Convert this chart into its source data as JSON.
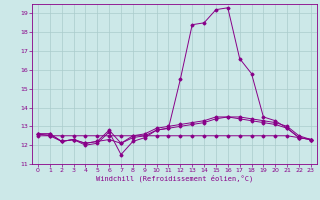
{
  "xlabel": "Windchill (Refroidissement éolien,°C)",
  "background_color": "#cce8e8",
  "line_color": "#880088",
  "grid_color": "#aacccc",
  "xlim": [
    -0.5,
    23.5
  ],
  "ylim": [
    11,
    19.5
  ],
  "yticks": [
    11,
    12,
    13,
    14,
    15,
    16,
    17,
    18,
    19
  ],
  "xticks": [
    0,
    1,
    2,
    3,
    4,
    5,
    6,
    7,
    8,
    9,
    10,
    11,
    12,
    13,
    14,
    15,
    16,
    17,
    18,
    19,
    20,
    21,
    22,
    23
  ],
  "series": [
    {
      "x": [
        0,
        1,
        2,
        3,
        4,
        5,
        6,
        7,
        8,
        9,
        10,
        11,
        12,
        13,
        14,
        15,
        16,
        17,
        18,
        19,
        20,
        21,
        22,
        23
      ],
      "y": [
        12.6,
        12.6,
        12.2,
        12.3,
        12.0,
        12.1,
        12.7,
        11.5,
        12.2,
        12.4,
        12.8,
        12.9,
        15.5,
        18.4,
        18.5,
        19.2,
        19.3,
        16.6,
        15.8,
        13.5,
        13.3,
        12.9,
        12.4,
        12.3
      ]
    },
    {
      "x": [
        0,
        1,
        2,
        3,
        4,
        5,
        6,
        7,
        8,
        9,
        10,
        11,
        12,
        13,
        14,
        15,
        16,
        17,
        18,
        19,
        20,
        21,
        22,
        23
      ],
      "y": [
        12.6,
        12.6,
        12.2,
        12.3,
        12.1,
        12.2,
        12.8,
        12.1,
        12.5,
        12.6,
        12.9,
        13.0,
        13.1,
        13.2,
        13.3,
        13.5,
        13.5,
        13.5,
        13.4,
        13.3,
        13.2,
        13.0,
        12.5,
        12.3
      ]
    },
    {
      "x": [
        0,
        1,
        2,
        3,
        4,
        5,
        6,
        7,
        8,
        9,
        10,
        11,
        12,
        13,
        14,
        15,
        16,
        17,
        18,
        19,
        20,
        21,
        22,
        23
      ],
      "y": [
        12.5,
        12.5,
        12.5,
        12.5,
        12.5,
        12.5,
        12.5,
        12.5,
        12.5,
        12.5,
        12.5,
        12.5,
        12.5,
        12.5,
        12.5,
        12.5,
        12.5,
        12.5,
        12.5,
        12.5,
        12.5,
        12.5,
        12.4,
        12.3
      ]
    },
    {
      "x": [
        0,
        1,
        2,
        3,
        4,
        5,
        6,
        7,
        8,
        9,
        10,
        11,
        12,
        13,
        14,
        15,
        16,
        17,
        18,
        19,
        20,
        21,
        22,
        23
      ],
      "y": [
        12.6,
        12.5,
        12.2,
        12.3,
        12.1,
        12.2,
        12.3,
        12.1,
        12.4,
        12.5,
        12.8,
        12.9,
        13.0,
        13.1,
        13.2,
        13.4,
        13.5,
        13.4,
        13.3,
        13.2,
        13.1,
        12.9,
        12.4,
        12.3
      ]
    }
  ]
}
